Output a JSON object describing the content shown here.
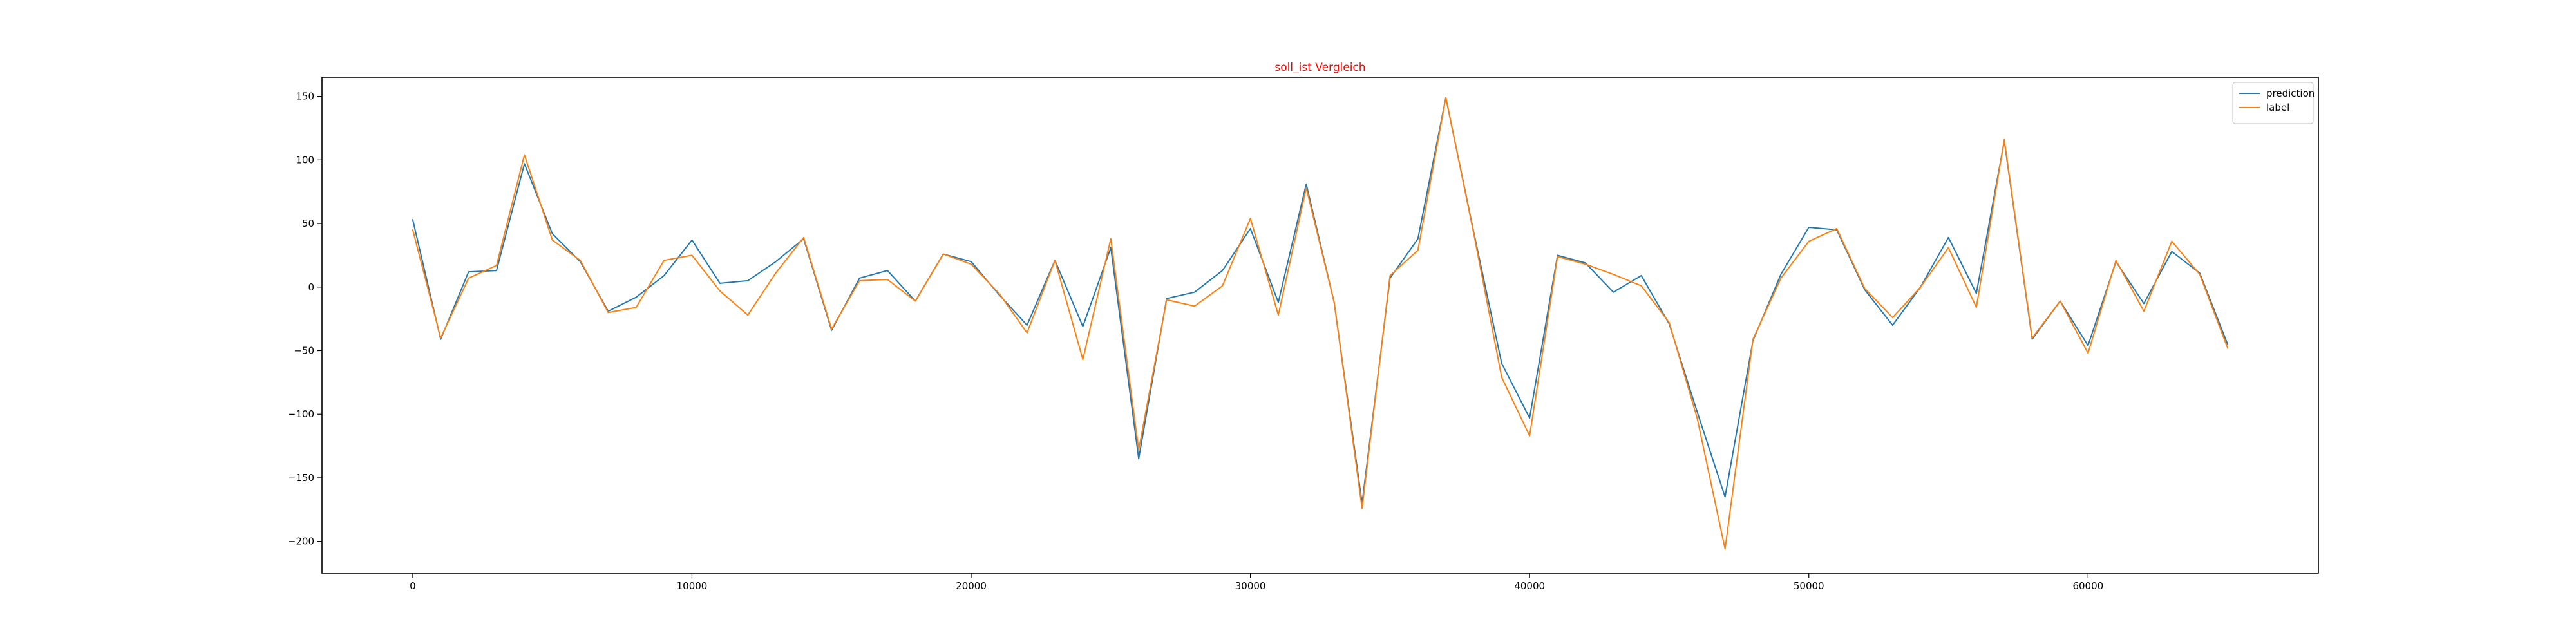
{
  "chart_data": {
    "type": "line",
    "title": "soll_ist Vergleich",
    "title_color": "#ff0000",
    "xlabel": "",
    "ylabel": "",
    "xlim": [
      -3250,
      68250
    ],
    "ylim": [
      -225,
      165
    ],
    "x_ticks": [
      0,
      10000,
      20000,
      30000,
      40000,
      50000,
      60000
    ],
    "y_ticks": [
      150,
      100,
      50,
      0,
      -50,
      -100,
      -150,
      -200
    ],
    "grid": false,
    "legend_position": "top-right",
    "x": [
      0,
      1000,
      2000,
      3000,
      4000,
      5000,
      6000,
      7000,
      8000,
      9000,
      10000,
      11000,
      12000,
      13000,
      14000,
      15000,
      16000,
      17000,
      18000,
      19000,
      20000,
      21000,
      22000,
      23000,
      24000,
      25000,
      26000,
      27000,
      28000,
      29000,
      30000,
      31000,
      32000,
      33000,
      34000,
      35000,
      36000,
      37000,
      38000,
      39000,
      40000,
      41000,
      42000,
      43000,
      44000,
      45000,
      46000,
      47000,
      48000,
      49000,
      50000,
      51000,
      52000,
      53000,
      54000,
      55000,
      56000,
      57000,
      58000,
      59000,
      60000,
      61000,
      62000,
      63000,
      64000,
      65000
    ],
    "series": [
      {
        "name": "prediction",
        "color": "#1f77b4",
        "values": [
          53,
          -41,
          12,
          13,
          97,
          42,
          20,
          -19,
          -8,
          9,
          37,
          3,
          5,
          20,
          38,
          -34,
          7,
          13,
          -11,
          26,
          20,
          -6,
          -30,
          21,
          -31,
          31,
          -135,
          -9,
          -4,
          13,
          46,
          -12,
          81,
          -12,
          -170,
          7,
          38,
          149,
          43,
          -60,
          -103,
          25,
          19,
          -4,
          9,
          -29,
          -98,
          -165,
          -42,
          10,
          47,
          45,
          -2,
          -30,
          0,
          39,
          -5,
          115,
          -41,
          -11,
          -46,
          20,
          -13,
          28,
          11,
          -45
        ],
        "markers": false
      },
      {
        "name": "label",
        "color": "#ff7f0e",
        "values": [
          45,
          -40,
          7,
          17,
          104,
          37,
          21,
          -20,
          -16,
          21,
          25,
          -3,
          -22,
          11,
          39,
          -33,
          5,
          6,
          -11,
          26,
          18,
          -5,
          -36,
          21,
          -57,
          38,
          -128,
          -10,
          -15,
          1,
          54,
          -22,
          78,
          -12,
          -174,
          9,
          29,
          149,
          42,
          -71,
          -117,
          24,
          18,
          10,
          1,
          -28,
          -103,
          -206,
          -41,
          7,
          36,
          46,
          -1,
          -24,
          0,
          31,
          -16,
          116,
          -40,
          -11,
          -52,
          21,
          -19,
          36,
          10,
          -48
        ],
        "markers": false
      }
    ]
  }
}
